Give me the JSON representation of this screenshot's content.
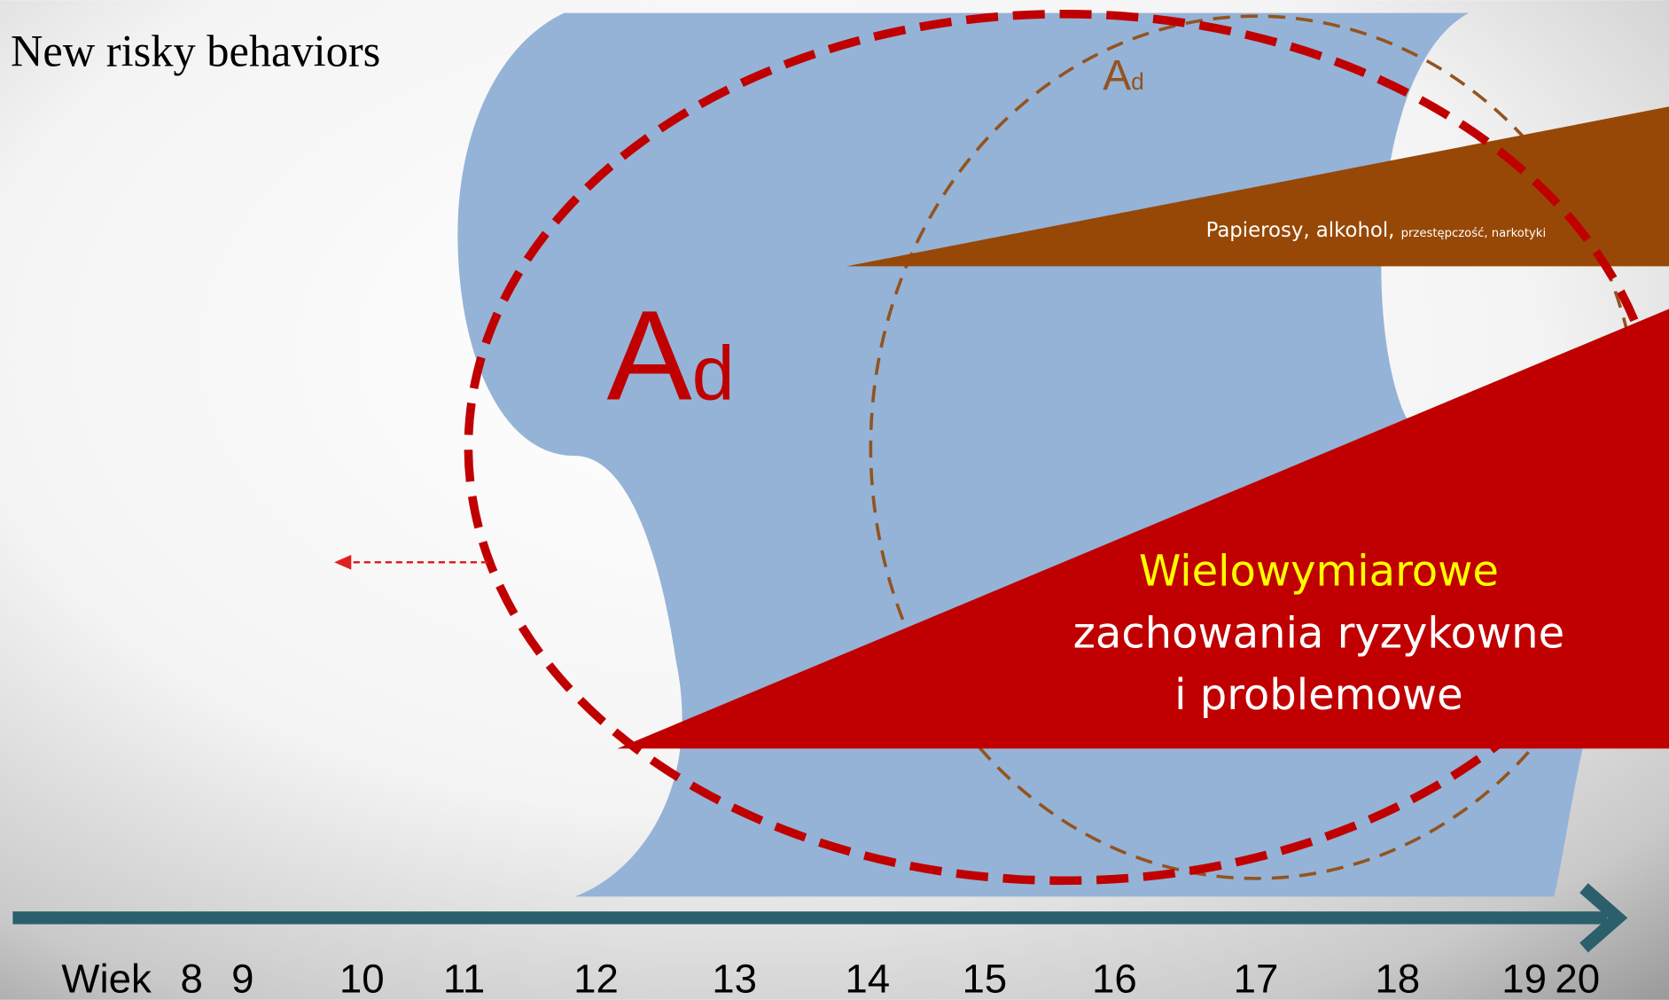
{
  "header": {
    "title": "New risky behaviors"
  },
  "labels": {
    "main": {
      "letter": "A",
      "subscript": "d"
    },
    "small": {
      "letter": "A",
      "subscript": "d"
    }
  },
  "wedges": {
    "substances": {
      "text": "Papierosy, alkohol,",
      "small_text": "przestępczość, narkotyki"
    },
    "multidimensional": {
      "lines": [
        "Wielowymiarowe",
        "zachowania ryzykowne",
        "i problemowe"
      ]
    }
  },
  "axis": {
    "label": "Wiek",
    "ages": [
      "8",
      "9",
      "10",
      "11",
      "12",
      "13",
      "14",
      "15",
      "16",
      "17",
      "18",
      "19",
      "20"
    ]
  }
}
